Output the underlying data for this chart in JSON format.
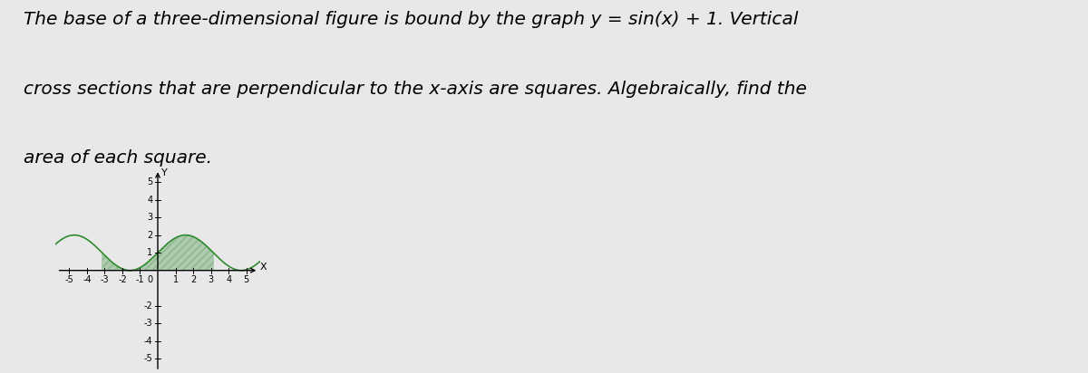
{
  "text_lines": [
    "The base of a three-dimensional figure is bound by the graph y = sin(x) + 1. Vertical",
    "cross sections that are perpendicular to the x-axis are squares. Algebraically, find the",
    "area of each square."
  ],
  "xlim": [
    -5.8,
    5.8
  ],
  "ylim": [
    -5.8,
    5.8
  ],
  "xticks": [
    -5,
    -4,
    -3,
    -2,
    -1,
    1,
    2,
    3,
    4,
    5
  ],
  "yticks": [
    -5,
    -4,
    -3,
    -2,
    1,
    2,
    3,
    4,
    5
  ],
  "curve_color": "#2e8b2e",
  "fill_color": "#2e8b2e",
  "fill_alpha": 0.3,
  "hatch_pattern": "////",
  "x_shade_start": -3.14159265,
  "x_shade_end": 3.14159265,
  "tick_fontsize": 7,
  "text_fontsize": 14.5,
  "background_color": "#e8e8e8"
}
